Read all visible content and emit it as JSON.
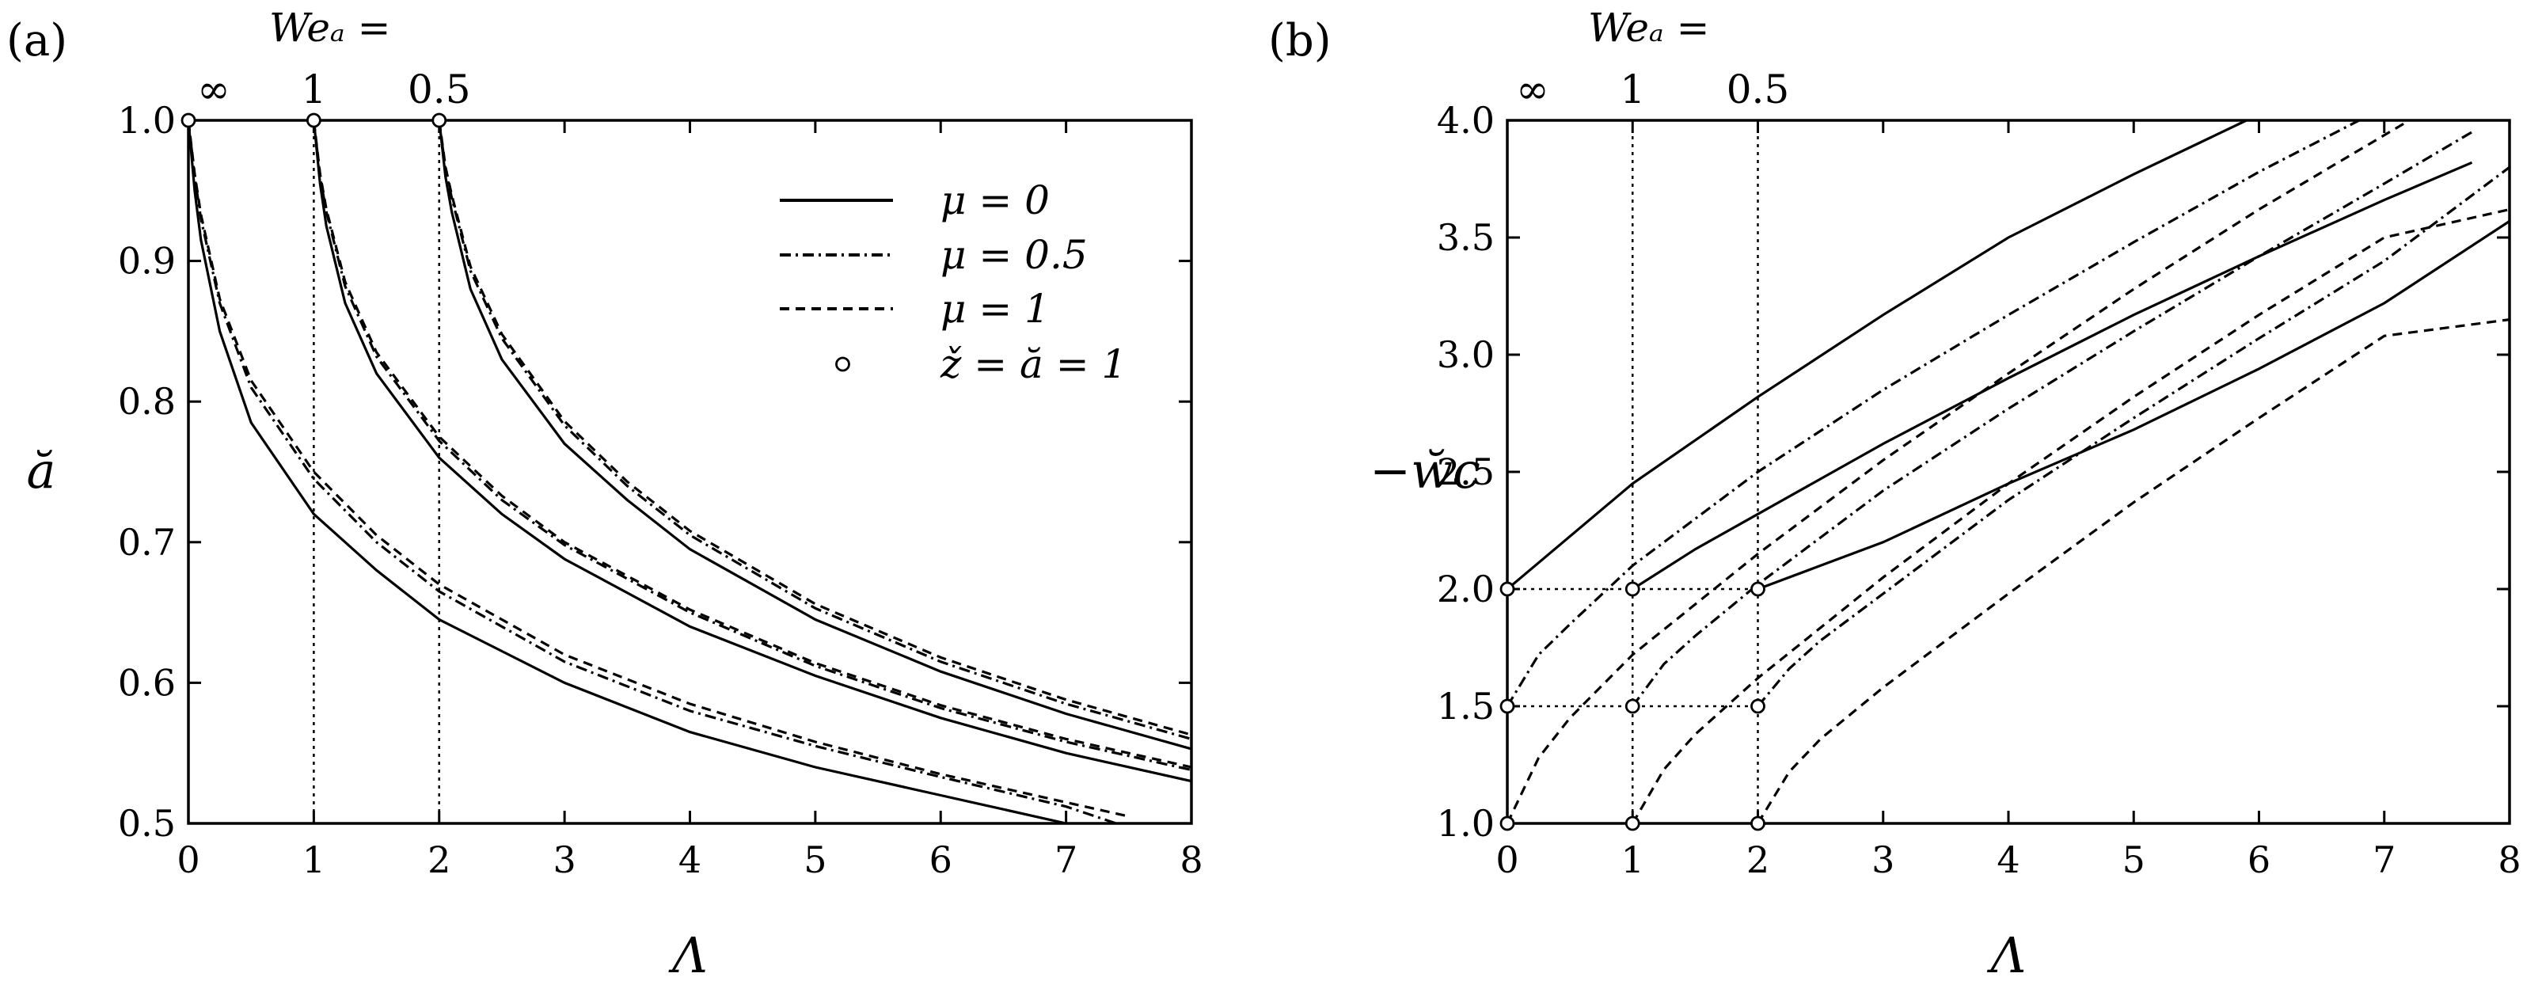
{
  "chart_data": [
    {
      "type": "line",
      "panel_label": "(a)",
      "xlabel": "Λ",
      "ylabel": "ă",
      "xlim": [
        0,
        8
      ],
      "ylim": [
        0.5,
        1.0
      ],
      "xticks": [
        "0",
        "1",
        "2",
        "3",
        "4",
        "5",
        "6",
        "7",
        "8"
      ],
      "yticks": [
        "0.5",
        "0.6",
        "0.7",
        "0.8",
        "0.9",
        "1.0"
      ],
      "top_axis": {
        "title": "Weₐ =",
        "labels": [
          {
            "text": "∞",
            "at": 0
          },
          {
            "text": "1",
            "at": 1
          },
          {
            "text": "0.5",
            "at": 2
          }
        ]
      },
      "vlines": [
        1,
        2
      ],
      "legend": {
        "position": "top-right",
        "entries": [
          {
            "style": "solid",
            "label": "μ = 0"
          },
          {
            "style": "dashdot",
            "label": "μ = 0.5"
          },
          {
            "style": "dashed",
            "label": "μ = 1"
          },
          {
            "style": "marker",
            "label": "ž = ă = 1"
          }
        ]
      },
      "series": [
        {
          "style": "solid",
          "We_a": "∞",
          "x": [
            0,
            0.05,
            0.1,
            0.25,
            0.5,
            1,
            1.5,
            2,
            3,
            4,
            5,
            6,
            7
          ],
          "y": [
            1.0,
            0.95,
            0.915,
            0.85,
            0.785,
            0.72,
            0.68,
            0.645,
            0.6,
            0.565,
            0.54,
            0.52,
            0.5
          ]
        },
        {
          "style": "dashdot",
          "We_a": "∞",
          "x": [
            0,
            0.05,
            0.1,
            0.25,
            0.5,
            1,
            1.5,
            2,
            3,
            4,
            5,
            6,
            7,
            7.4
          ],
          "y": [
            1.0,
            0.96,
            0.93,
            0.87,
            0.81,
            0.745,
            0.7,
            0.665,
            0.615,
            0.58,
            0.555,
            0.533,
            0.512,
            0.5
          ]
        },
        {
          "style": "dashed",
          "We_a": "∞",
          "x": [
            0,
            0.05,
            0.1,
            0.25,
            0.5,
            1,
            1.5,
            2,
            3,
            4,
            5,
            6,
            7,
            7.5
          ],
          "y": [
            1.0,
            0.962,
            0.933,
            0.873,
            0.815,
            0.75,
            0.705,
            0.67,
            0.62,
            0.585,
            0.558,
            0.535,
            0.515,
            0.505
          ]
        },
        {
          "style": "solid",
          "We_a": "1",
          "x": [
            1,
            1.05,
            1.1,
            1.25,
            1.5,
            2,
            2.5,
            3,
            4,
            5,
            6,
            7,
            8
          ],
          "y": [
            1.0,
            0.955,
            0.925,
            0.87,
            0.82,
            0.76,
            0.72,
            0.688,
            0.64,
            0.605,
            0.575,
            0.55,
            0.53
          ]
        },
        {
          "style": "dashdot",
          "We_a": "1",
          "x": [
            1,
            1.05,
            1.1,
            1.25,
            1.5,
            2,
            2.5,
            3,
            4,
            5,
            6,
            7,
            8
          ],
          "y": [
            1.0,
            0.96,
            0.935,
            0.882,
            0.832,
            0.772,
            0.73,
            0.698,
            0.65,
            0.612,
            0.582,
            0.558,
            0.538
          ]
        },
        {
          "style": "dashed",
          "We_a": "1",
          "x": [
            1,
            1.05,
            1.1,
            1.25,
            1.5,
            2,
            2.5,
            3,
            4,
            5,
            6,
            7,
            8
          ],
          "y": [
            1.0,
            0.962,
            0.937,
            0.885,
            0.835,
            0.775,
            0.733,
            0.7,
            0.652,
            0.614,
            0.584,
            0.56,
            0.54
          ]
        },
        {
          "style": "solid",
          "We_a": "0.5",
          "x": [
            2,
            2.05,
            2.1,
            2.25,
            2.5,
            3,
            3.5,
            4,
            5,
            6,
            7,
            8
          ],
          "y": [
            1.0,
            0.96,
            0.935,
            0.88,
            0.83,
            0.77,
            0.73,
            0.695,
            0.645,
            0.608,
            0.578,
            0.553
          ]
        },
        {
          "style": "dashdot",
          "We_a": "0.5",
          "x": [
            2,
            2.05,
            2.1,
            2.25,
            2.5,
            3,
            3.5,
            4,
            5,
            6,
            7,
            8
          ],
          "y": [
            1.0,
            0.965,
            0.945,
            0.893,
            0.845,
            0.783,
            0.74,
            0.705,
            0.653,
            0.615,
            0.585,
            0.56
          ]
        },
        {
          "style": "dashed",
          "We_a": "0.5",
          "x": [
            2,
            2.05,
            2.1,
            2.25,
            2.5,
            3,
            3.5,
            4,
            5,
            6,
            7,
            8
          ],
          "y": [
            1.0,
            0.967,
            0.947,
            0.896,
            0.848,
            0.786,
            0.743,
            0.708,
            0.656,
            0.618,
            0.588,
            0.563
          ]
        }
      ],
      "markers": [
        {
          "x": 0,
          "y": 1.0
        },
        {
          "x": 1,
          "y": 1.0
        },
        {
          "x": 2,
          "y": 1.0
        }
      ]
    },
    {
      "type": "line",
      "panel_label": "(b)",
      "xlabel": "Λ",
      "ylabel": "−w̆c",
      "xlim": [
        0,
        8
      ],
      "ylim": [
        1.0,
        4.0
      ],
      "xticks": [
        "0",
        "1",
        "2",
        "3",
        "4",
        "5",
        "6",
        "7",
        "8"
      ],
      "yticks": [
        "1.0",
        "1.5",
        "2.0",
        "2.5",
        "3.0",
        "3.5",
        "4.0"
      ],
      "top_axis": {
        "title": "Weₐ =",
        "labels": [
          {
            "text": "∞",
            "at": 0
          },
          {
            "text": "1",
            "at": 1
          },
          {
            "text": "0.5",
            "at": 2
          }
        ]
      },
      "vlines": [
        1,
        2
      ],
      "hlines": [
        {
          "y": 2.0,
          "x": [
            0,
            2
          ]
        },
        {
          "y": 1.5,
          "x": [
            0,
            2
          ]
        }
      ],
      "series": [
        {
          "style": "solid",
          "We_a": "∞",
          "x": [
            0,
            1,
            2,
            3,
            4,
            5,
            5.9
          ],
          "y": [
            2.0,
            2.45,
            2.82,
            3.17,
            3.5,
            3.77,
            4.0
          ]
        },
        {
          "style": "solid",
          "We_a": "1",
          "x": [
            1,
            1.5,
            2,
            3,
            4,
            5,
            6,
            7,
            7.7
          ],
          "y": [
            2.0,
            2.17,
            2.32,
            2.62,
            2.9,
            3.17,
            3.42,
            3.66,
            3.82
          ]
        },
        {
          "style": "solid",
          "We_a": "0.5",
          "x": [
            2,
            2.5,
            3,
            4,
            5,
            6,
            7,
            8
          ],
          "y": [
            2.0,
            2.1,
            2.2,
            2.45,
            2.68,
            2.94,
            3.22,
            3.57
          ]
        },
        {
          "style": "dashdot",
          "We_a": "∞",
          "x": [
            0,
            0.25,
            0.5,
            1,
            2,
            3,
            4,
            5,
            6,
            6.8
          ],
          "y": [
            1.5,
            1.72,
            1.85,
            2.1,
            2.5,
            2.85,
            3.17,
            3.48,
            3.78,
            4.0
          ]
        },
        {
          "style": "dashdot",
          "We_a": "1",
          "x": [
            1,
            1.25,
            1.5,
            2,
            3,
            4,
            5,
            6,
            7,
            7.7
          ],
          "y": [
            1.5,
            1.68,
            1.8,
            2.02,
            2.42,
            2.77,
            3.1,
            3.42,
            3.73,
            3.95
          ]
        },
        {
          "style": "dashdot",
          "We_a": "0.5",
          "x": [
            2,
            2.25,
            2.5,
            3,
            4,
            5,
            6,
            7,
            8
          ],
          "y": [
            1.5,
            1.66,
            1.78,
            1.98,
            2.38,
            2.73,
            3.07,
            3.4,
            3.8
          ]
        },
        {
          "style": "dashed",
          "We_a": "∞",
          "x": [
            0,
            0.25,
            0.5,
            1,
            2,
            3,
            4,
            5,
            6,
            7.2
          ],
          "y": [
            1.0,
            1.28,
            1.45,
            1.72,
            2.15,
            2.55,
            2.92,
            3.28,
            3.62,
            4.0
          ]
        },
        {
          "style": "dashed",
          "We_a": "1",
          "x": [
            1,
            1.25,
            1.5,
            2,
            3,
            4,
            5,
            6,
            7,
            8
          ],
          "y": [
            1.0,
            1.23,
            1.38,
            1.62,
            2.05,
            2.45,
            2.82,
            3.17,
            3.5,
            3.62
          ]
        },
        {
          "style": "dashed",
          "We_a": "0.5",
          "x": [
            2,
            2.25,
            2.5,
            3,
            4,
            5,
            6,
            7,
            8
          ],
          "y": [
            1.0,
            1.22,
            1.36,
            1.58,
            1.98,
            2.37,
            2.73,
            3.08,
            3.15
          ]
        }
      ],
      "markers": [
        {
          "x": 0,
          "y": 2.0
        },
        {
          "x": 1,
          "y": 2.0
        },
        {
          "x": 2,
          "y": 2.0
        },
        {
          "x": 0,
          "y": 1.5
        },
        {
          "x": 1,
          "y": 1.5
        },
        {
          "x": 2,
          "y": 1.5
        },
        {
          "x": 0,
          "y": 1.0
        },
        {
          "x": 1,
          "y": 1.0
        },
        {
          "x": 2,
          "y": 1.0
        }
      ]
    }
  ]
}
